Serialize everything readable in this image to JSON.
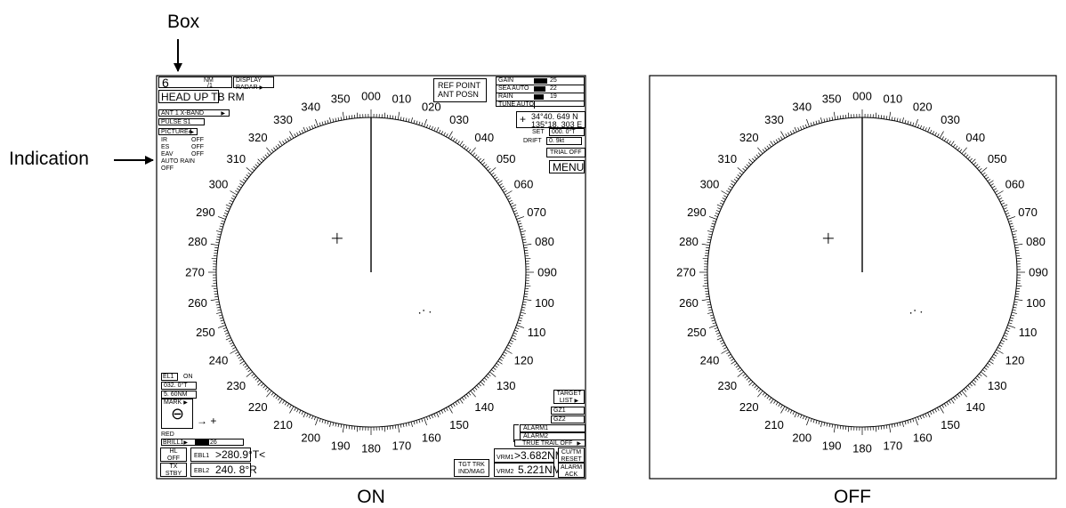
{
  "callouts": {
    "box": "Box",
    "indication": "Indication"
  },
  "captions": {
    "on": "ON",
    "off": "OFF"
  },
  "scale_labels": [
    "000",
    "010",
    "020",
    "030",
    "040",
    "050",
    "060",
    "070",
    "080",
    "090",
    "100",
    "110",
    "120",
    "130",
    "140",
    "150",
    "160",
    "170",
    "180",
    "190",
    "200",
    "210",
    "220",
    "230",
    "240",
    "250",
    "260",
    "270",
    "280",
    "290",
    "300",
    "310",
    "320",
    "330",
    "340",
    "350"
  ],
  "heading_line_deg": 0,
  "center_cross": {
    "bearing_deg": 315,
    "range_fraction": 0.31
  },
  "echo_dots": [
    {
      "bearing_deg": 126,
      "range_fraction": 0.42
    },
    {
      "bearing_deg": 130,
      "range_fraction": 0.41
    },
    {
      "bearing_deg": 124,
      "range_fraction": 0.46
    }
  ],
  "on_panel": {
    "range": {
      "value": "6",
      "unit": "NM",
      "sub": "/1"
    },
    "display": {
      "line1": "DISPLAY",
      "line2": "RADAR"
    },
    "mode": "HEAD UP TB RM",
    "antenna": "ANT 1  X-BAND",
    "pulse": "PULSE S1",
    "picture": "PICTURE4",
    "indications": [
      {
        "label": "IR",
        "value": "OFF"
      },
      {
        "label": "ES",
        "value": "OFF"
      },
      {
        "label": "EAV",
        "value": "OFF"
      }
    ],
    "auto_rain": {
      "label": "AUTO RAIN",
      "value": "OFF"
    },
    "ref_point": {
      "line1": "REF POINT",
      "line2": "ANT POSN"
    },
    "levels": [
      {
        "label": "GAIN",
        "value": "25",
        "level": 0.25
      },
      {
        "label": "SEA AUTO",
        "value": "22",
        "level": 0.22
      },
      {
        "label": "RAIN",
        "value": "19",
        "level": 0.19
      }
    ],
    "tune": "TUNE AUTO",
    "position": {
      "lat": "34°40. 649 N",
      "lon": "135°18. 303 E"
    },
    "set": {
      "label": "SET",
      "value": "000. 0°T"
    },
    "drift": {
      "label": "DRIFT",
      "value": "0. 9kt"
    },
    "trial": "TRIAL OFF",
    "menu": "MENU",
    "el": {
      "label": "EL1",
      "state": "ON",
      "bearing": "032. 0°T",
      "range": "5. 60NM"
    },
    "mark": {
      "label": "MARK",
      "symbol": "⊖",
      "arrow": "→ +"
    },
    "color": "RED",
    "brill": {
      "label": "BRILL1",
      "value": "26",
      "level": 0.26
    },
    "hl": {
      "line1": "HL",
      "line2": "OFF"
    },
    "tx": {
      "line1": "TX",
      "line2": "STBY"
    },
    "ebl1": {
      "label": "EBL1",
      "value": ">280.9°T<"
    },
    "ebl2": {
      "label": "EBL2",
      "value": "240. 8°R"
    },
    "tgt": {
      "line1": "TGT TRK",
      "line2": "IND/MAG"
    },
    "vrm1": {
      "label": "VRM1",
      "value": ">3.682NM<"
    },
    "vrm2": {
      "label": "VRM2",
      "value": "5.221NM"
    },
    "cu": {
      "line1": "CU/TM",
      "line2": "RESET"
    },
    "alarm_ack": {
      "line1": "ALARM",
      "line2": "ACK"
    },
    "target_list": {
      "line1": "TARGET",
      "line2": "LIST"
    },
    "gz1": "GZ1",
    "gz2": "GZ2",
    "alarm1": "ALARM1",
    "alarm2": "ALARM2",
    "true_trail": "TRUE TRAIL OFF"
  }
}
